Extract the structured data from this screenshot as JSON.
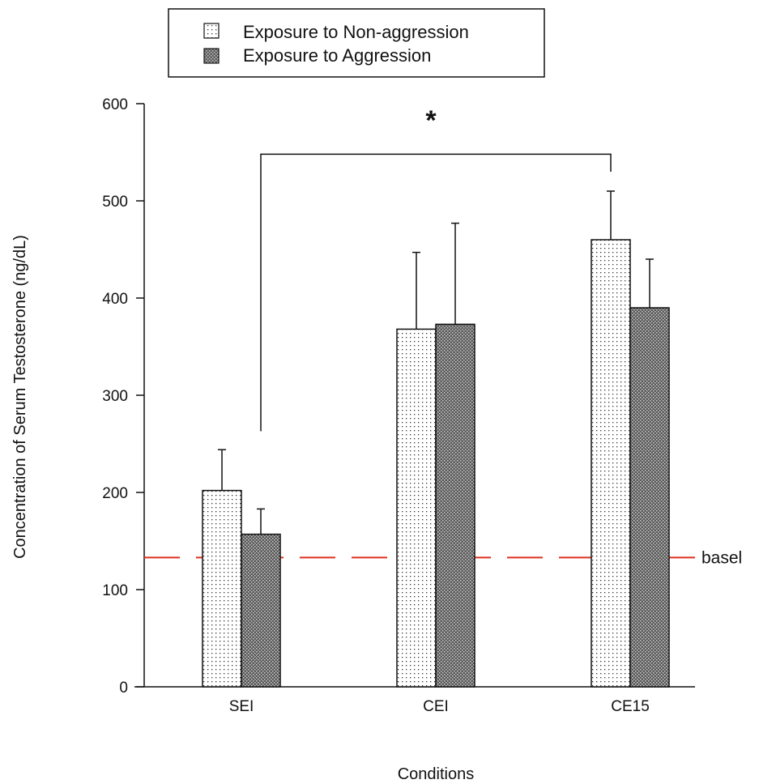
{
  "chart_data": {
    "type": "bar",
    "title": "",
    "xlabel": "Conditions",
    "ylabel": "Concentration of Serum Testosterone (ng/dL)",
    "ylim": [
      0,
      600
    ],
    "yticks": [
      0,
      100,
      200,
      300,
      400,
      500,
      600
    ],
    "categories": [
      "SEI",
      "CEI",
      "CE15"
    ],
    "series": [
      {
        "name": "Exposure to Non-aggression",
        "pattern": "dotted",
        "values": [
          202,
          368,
          460
        ],
        "errors": [
          42,
          79,
          50
        ]
      },
      {
        "name": "Exposure to Aggression",
        "pattern": "dark-crosshatch",
        "values": [
          157,
          373,
          390
        ],
        "errors": [
          26,
          104,
          50
        ]
      }
    ],
    "baseline": {
      "value": 133,
      "label": "basel",
      "color": "#e0301e",
      "style": "dashed"
    },
    "significance": {
      "label": "*",
      "from": "SEI / Exposure to Aggression",
      "to": "CE15 / Exposure to Non-aggression"
    },
    "legend": {
      "placement": "top-left"
    },
    "grid": false
  }
}
